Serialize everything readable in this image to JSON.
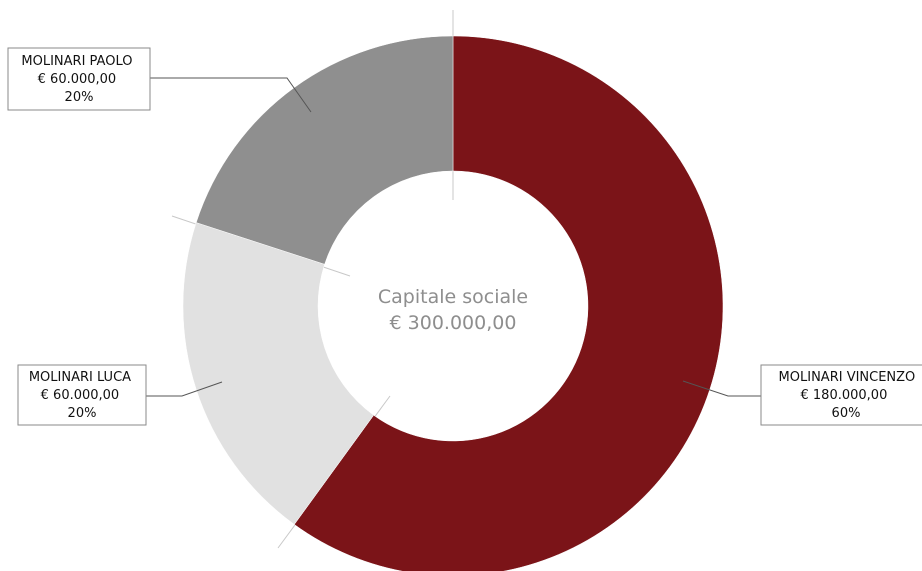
{
  "chart_data": {
    "type": "pie",
    "variant": "donut",
    "center_title": "Capitale sociale",
    "center_value": "€ 300.000,00",
    "slices": [
      {
        "name": "MOLINARI VINCENZO",
        "value_label": "€ 180.000,00",
        "value": 180000,
        "percent_label": "60%",
        "percent": 60,
        "color": "#7b1418"
      },
      {
        "name": "MOLINARI LUCA",
        "value_label": "€ 60.000,00",
        "value": 60000,
        "percent_label": "20%",
        "percent": 20,
        "color": "#e1e1e1"
      },
      {
        "name": "MOLINARI PAOLO",
        "value_label": "€ 60.000,00",
        "value": 60000,
        "percent_label": "20%",
        "percent": 20,
        "color": "#8f8f8f"
      }
    ]
  }
}
